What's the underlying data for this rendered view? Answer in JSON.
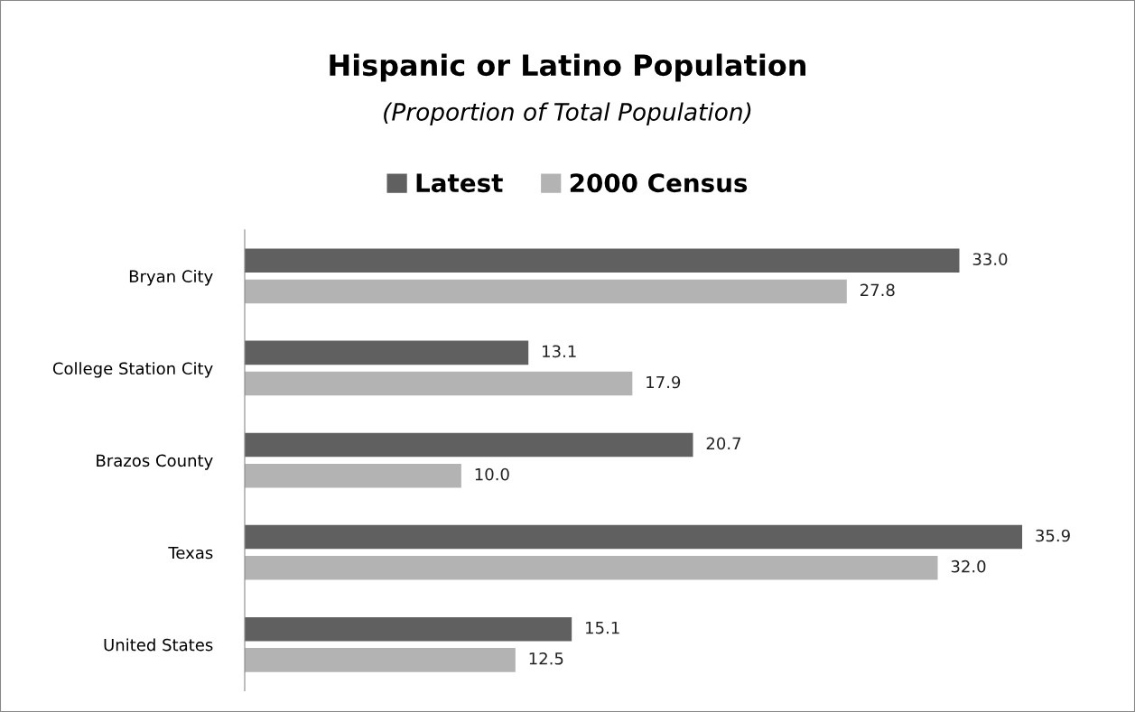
{
  "chart_data": {
    "type": "bar",
    "orientation": "horizontal",
    "title": "Hispanic or Latino Population",
    "subtitle": "(Proportion of Total Population)",
    "categories": [
      "Bryan City",
      "College Station City",
      "Brazos County",
      "Texas",
      "United States"
    ],
    "series": [
      {
        "name": "Latest",
        "color": "#606060",
        "values": [
          33.0,
          13.1,
          20.7,
          35.9,
          15.1
        ],
        "value_labels": [
          "33.0",
          "13.1",
          "20.7",
          "35.9",
          "15.1"
        ]
      },
      {
        "name": "2000 Census",
        "color": "#b3b3b3",
        "values": [
          27.8,
          17.9,
          10.0,
          32.0,
          12.5
        ],
        "value_labels": [
          "27.8",
          "17.9",
          "10.0",
          "32.0",
          "12.5"
        ]
      }
    ],
    "legend": "top",
    "grid": false,
    "tick_labels": "y"
  }
}
